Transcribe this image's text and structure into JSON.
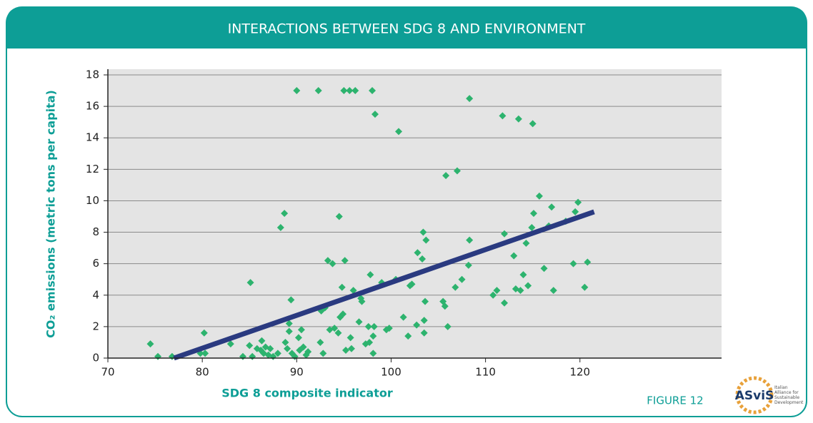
{
  "chart_data": {
    "type": "scatter",
    "title": "INTERACTIONS BETWEEN SDG 8 AND ENVIRONMENT",
    "xlabel": "SDG 8 composite indicator",
    "ylabel": "CO₂ emissions (metric tons per capita)",
    "figure_label": "FIGURE 12",
    "logo": {
      "name": "ASviS",
      "tagline": "Italian Alliance for Sustainable Development"
    },
    "xlim": [
      70,
      135
    ],
    "ylim": [
      0,
      18
    ],
    "xticks": [
      70,
      80,
      90,
      100,
      110,
      120
    ],
    "yticks": [
      0,
      2,
      4,
      6,
      8,
      10,
      12,
      14,
      16,
      18
    ],
    "grid": true,
    "color": "#2db36e",
    "x": [
      74.5,
      75.3,
      76.8,
      79.8,
      80.2,
      80.3,
      83,
      84.3,
      85,
      85.1,
      85.3,
      85.8,
      86.2,
      86.3,
      86.5,
      86.7,
      87,
      87.2,
      87.5,
      88,
      88.3,
      88.7,
      88.8,
      89,
      89.2,
      89.2,
      89.4,
      89.5,
      89.8,
      90,
      90.2,
      90.3,
      90.5,
      90.7,
      91,
      91.2,
      92.3,
      92.5,
      92.6,
      92.8,
      93,
      93.3,
      93.5,
      93.8,
      94,
      94.4,
      94.5,
      94.6,
      94.8,
      94.9,
      95,
      95.1,
      95.2,
      95.6,
      95.7,
      95.8,
      96,
      96.2,
      96.6,
      96.8,
      96.9,
      97.3,
      97.6,
      97.7,
      97.8,
      98,
      98.1,
      98.1,
      98.2,
      98.3,
      99,
      99.5,
      99.8,
      100.5,
      100.8,
      101.3,
      101.8,
      102,
      102.2,
      102.7,
      102.8,
      103.3,
      103.4,
      103.5,
      103.5,
      103.6,
      103.7,
      105.5,
      105.7,
      105.8,
      106,
      106.8,
      107,
      107.5,
      108.2,
      108.3,
      108.3,
      110.8,
      111.2,
      111.8,
      112,
      112,
      113,
      113.2,
      113.5,
      113.7,
      114,
      114.3,
      114.5,
      114.9,
      115,
      115.1,
      115.7,
      116.2,
      116.7,
      117,
      117.2,
      119.3,
      119.5,
      119.8,
      120.5,
      120.8,
      118.5
    ],
    "values": [
      0.9,
      0.1,
      0.1,
      0.3,
      1.6,
      0.3,
      0.9,
      0.1,
      0.8,
      4.8,
      0.1,
      0.6,
      0.5,
      1.1,
      0.3,
      0.7,
      0.2,
      0.6,
      0.1,
      0.3,
      8.3,
      9.2,
      1.0,
      0.6,
      2.2,
      1.7,
      3.7,
      0.3,
      0.1,
      17,
      1.3,
      0.5,
      1.8,
      0.7,
      0.2,
      0.4,
      17,
      1.0,
      3.0,
      0.3,
      3.2,
      6.2,
      1.8,
      6.0,
      1.9,
      1.6,
      9.0,
      2.6,
      4.5,
      2.8,
      17,
      6.2,
      0.5,
      17,
      1.3,
      0.6,
      4.3,
      17,
      2.3,
      3.8,
      3.6,
      0.9,
      2.0,
      1.0,
      5.3,
      17,
      0.3,
      1.4,
      2.0,
      15.5,
      4.8,
      1.8,
      1.9,
      5.0,
      14.4,
      2.6,
      1.4,
      4.6,
      4.7,
      2.1,
      6.7,
      6.3,
      8.0,
      1.6,
      2.4,
      3.6,
      7.5,
      3.6,
      3.3,
      11.6,
      2.0,
      4.5,
      11.9,
      5.0,
      5.9,
      7.5,
      16.5,
      4.0,
      4.3,
      15.4,
      7.9,
      3.5,
      6.5,
      4.4,
      15.2,
      4.3,
      5.3,
      7.3,
      4.6,
      8.3,
      14.9,
      9.2,
      10.3,
      5.7,
      8.4,
      9.6,
      4.3,
      6.0,
      9.3,
      9.9,
      4.5,
      6.1,
      8.7
    ],
    "trend_line": {
      "x": [
        77,
        121.5
      ],
      "values": [
        0,
        9.3
      ],
      "color": "#2a3a80"
    }
  }
}
